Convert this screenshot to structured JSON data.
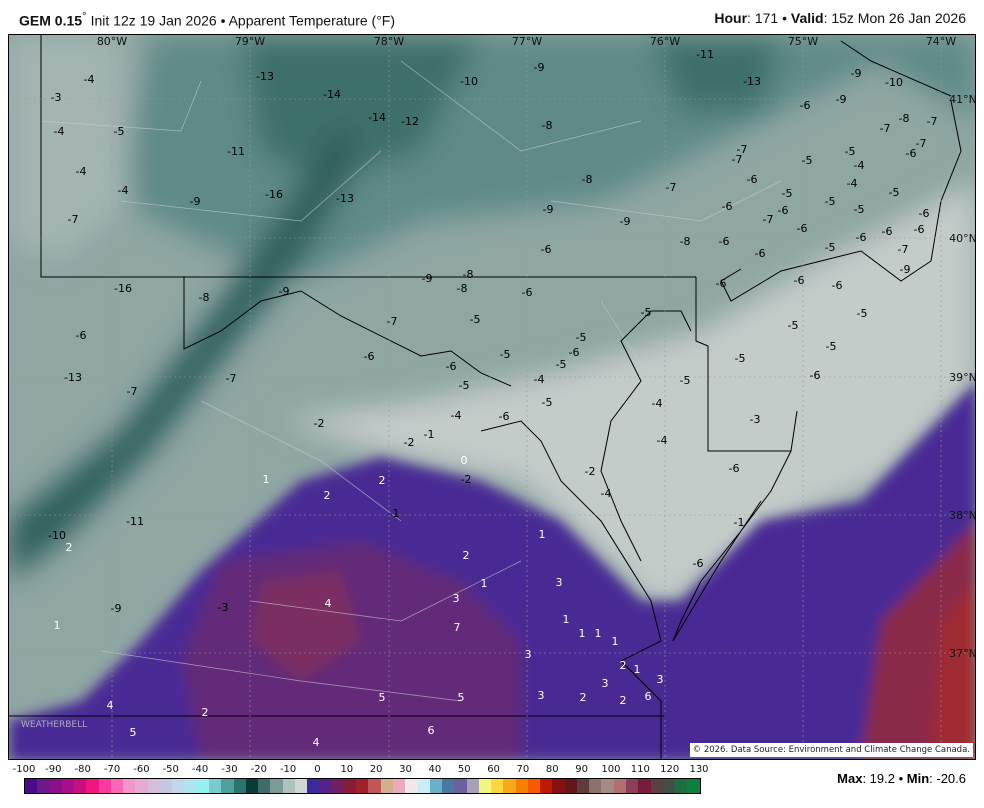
{
  "header": {
    "model": "GEM 0.15",
    "model_deg": "°",
    "init": " Init 12z 19 Jan 2026 • Apparent Temperature (°F)",
    "hour_label": "Hour",
    "hour": ": 171 • ",
    "valid_label": "Valid",
    "valid": ": 15z Mon 26 Jan 2026"
  },
  "map": {
    "lon_labels": [
      "80°W",
      "79°W",
      "78°W",
      "77°W",
      "76°W",
      "75°W",
      "74°W"
    ],
    "lat_labels": [
      "41°N",
      "40°N",
      "39°N",
      "38°N",
      "37°N"
    ],
    "values": [
      -4,
      -3,
      -4,
      -5,
      -4,
      -4,
      -7,
      -9,
      -13,
      -14,
      -14,
      -12,
      -11,
      -16,
      -13,
      -10,
      -9,
      -8,
      -11,
      -13,
      -9,
      -10,
      -9,
      -6,
      -8,
      -7,
      -7,
      -7,
      -7,
      -5,
      -5,
      -4,
      -4,
      -6,
      -7,
      -5,
      -6,
      -5,
      -5,
      -5,
      -6,
      -6,
      -6,
      -6,
      -7,
      -6,
      -6,
      -6,
      -5,
      -6,
      -7,
      -9,
      -8,
      -7,
      -9,
      -9,
      -8,
      -6,
      -6,
      -6,
      -6,
      -6,
      -5,
      -5,
      -5,
      -6,
      -5,
      -5,
      -3,
      -6,
      -16,
      -8,
      -9,
      -9,
      -8,
      -8,
      -6,
      -7,
      -5,
      -6,
      -13,
      -7,
      -7,
      -6,
      -6,
      -5,
      -5,
      -5,
      -6,
      -5,
      -5,
      -4,
      -5,
      -4,
      -4,
      -4,
      -6,
      -2,
      -2,
      -1,
      0,
      -2,
      -2,
      -4,
      1,
      2,
      2,
      -1,
      -1,
      -6,
      -11,
      -10,
      2,
      2,
      1,
      1,
      3,
      3,
      7,
      4,
      -3,
      -9,
      1,
      1,
      1,
      1,
      1,
      1,
      2,
      3,
      3,
      3,
      2,
      3,
      2,
      6,
      5,
      5,
      2,
      4,
      5,
      6,
      4
    ],
    "positive_color": "#ffffff",
    "negative_color": "#000000",
    "credit": "© 2026. Data Source: Environment and Climate Change Canada.",
    "watermark": "WEATHERBELL"
  },
  "colorbar": {
    "ticks": [
      "-100",
      "-90",
      "-80",
      "-70",
      "-60",
      "-50",
      "-40",
      "-30",
      "-20",
      "-10",
      "0",
      "10",
      "20",
      "30",
      "40",
      "50",
      "60",
      "70",
      "80",
      "90",
      "100",
      "110",
      "120",
      "130"
    ],
    "colors": [
      "#4b0a8a",
      "#6a1a8a",
      "#88108a",
      "#a5108a",
      "#c80f80",
      "#f0157f",
      "#fa3aa0",
      "#fc68b8",
      "#f596c8",
      "#e3aad2",
      "#d5bcdc",
      "#c6c6e2",
      "#c2d8ea",
      "#ade6f0",
      "#96f2f2",
      "#7ccad0",
      "#50a0a0",
      "#2b7470",
      "#0c3a38",
      "#3f6c6a",
      "#7a9a98",
      "#b0c2c0",
      "#cfd6d4",
      "#3a2a9a",
      "#552288",
      "#722066",
      "#8a1c3a",
      "#a02228",
      "#c05658",
      "#d2b08a",
      "#e8aabc",
      "#f0e6ec",
      "#c8f0f2",
      "#6ab0c8",
      "#4a78a0",
      "#6a62a0",
      "#a8a0b8",
      "#f4f480",
      "#fbd840",
      "#f8a818",
      "#f88000",
      "#f85a00",
      "#c01800",
      "#881010",
      "#601818",
      "#5e3c3c",
      "#8c706c",
      "#a88a84",
      "#b07070",
      "#8a4058",
      "#781c3c",
      "#5a4040",
      "#405048",
      "#1a7040",
      "#0c8040"
    ]
  },
  "stats": {
    "max_label": "Max",
    "max": ": 19.2 • ",
    "min_label": "Min",
    "min": ": -20.6"
  }
}
